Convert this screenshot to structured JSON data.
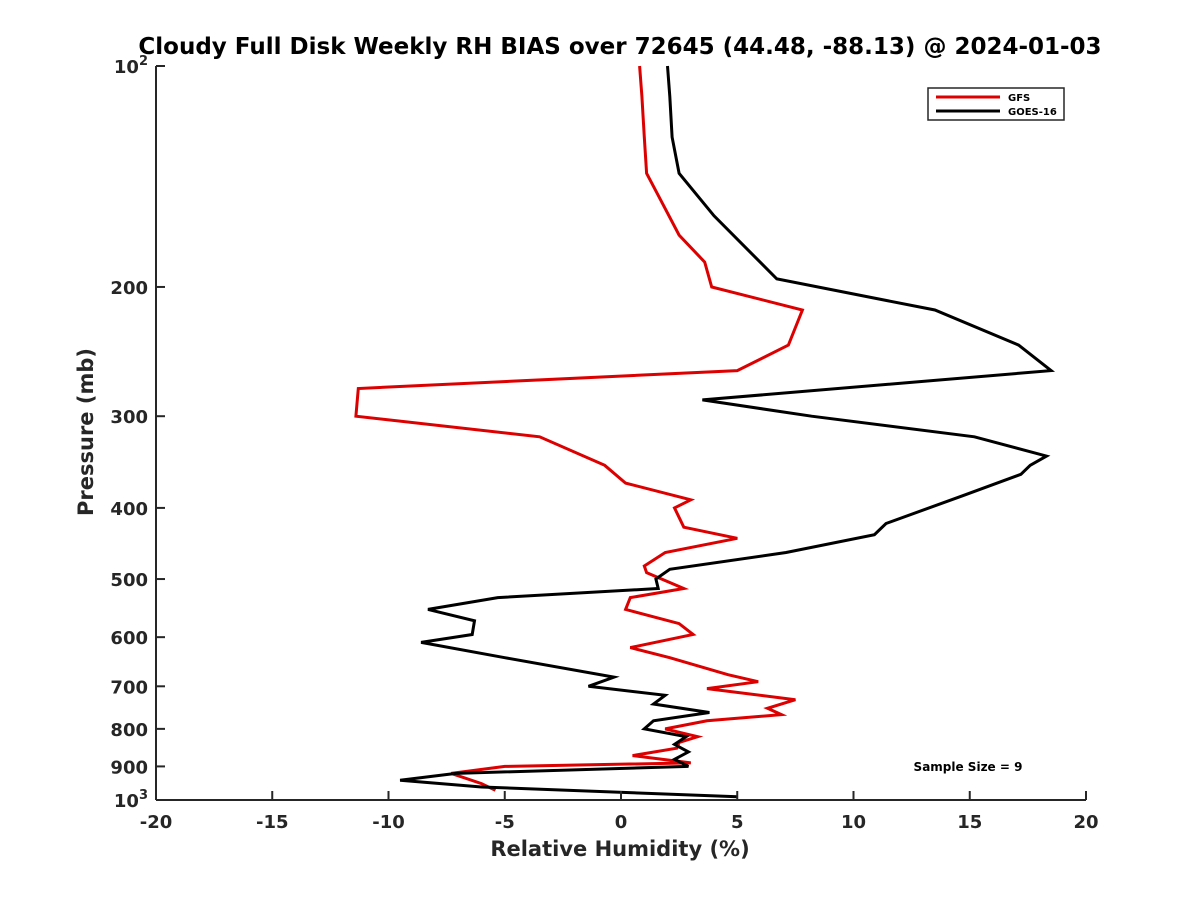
{
  "chart_data": {
    "type": "line",
    "title": "Cloudy Full Disk Weekly RH BIAS over 72645 (44.48, -88.13) @ 2024-01-03",
    "xlabel": "Relative Humidity (%)",
    "ylabel": "Pressure (mb)",
    "xlim": [
      -20,
      20
    ],
    "ylim": [
      100,
      1000
    ],
    "yscale": "log",
    "y_reversed": true,
    "grid": false,
    "legend_position": "top-right",
    "xticks": [
      -20,
      -15,
      -10,
      -5,
      0,
      5,
      10,
      15,
      20
    ],
    "xtick_labels": [
      "-20",
      "-15",
      "-10",
      "-5",
      "0",
      "5",
      "10",
      "15",
      "20"
    ],
    "yticks": [
      100,
      200,
      300,
      400,
      500,
      600,
      700,
      800,
      900,
      1000
    ],
    "ytick_labels": [
      {
        "base": "10",
        "exp": "2"
      },
      {
        "base": "200",
        "exp": ""
      },
      {
        "base": "300",
        "exp": ""
      },
      {
        "base": "400",
        "exp": ""
      },
      {
        "base": "500",
        "exp": ""
      },
      {
        "base": "600",
        "exp": ""
      },
      {
        "base": "700",
        "exp": ""
      },
      {
        "base": "800",
        "exp": ""
      },
      {
        "base": "900",
        "exp": ""
      },
      {
        "base": "10",
        "exp": "3"
      }
    ],
    "annotation": "Sample Size = 9",
    "series": [
      {
        "name": "GFS",
        "color": "#dd0000",
        "x": [
          0.8,
          0.9,
          1.0,
          1.1,
          1.6,
          2.5,
          3.6,
          3.9,
          7.8,
          7.2,
          5.0,
          -11.3,
          -11.4,
          -3.5,
          -0.7,
          0.2,
          3.0,
          2.3,
          2.7,
          5.0,
          1.9,
          1.0,
          1.1,
          2.7,
          0.4,
          0.2,
          2.5,
          3.1,
          0.4,
          2.1,
          4.6,
          5.9,
          3.7,
          7.5,
          6.3,
          6.9,
          3.7,
          1.9,
          3.3,
          2.5,
          2.4,
          0.5,
          3.0,
          -5.0,
          -7.3,
          -6.0,
          -5.4
        ],
        "y": [
          100,
          110,
          125,
          140,
          150,
          170,
          185,
          200,
          215,
          240,
          260,
          275,
          300,
          320,
          350,
          370,
          390,
          400,
          425,
          440,
          460,
          480,
          490,
          515,
          530,
          550,
          575,
          595,
          620,
          640,
          675,
          690,
          705,
          730,
          750,
          765,
          780,
          800,
          820,
          835,
          850,
          870,
          890,
          900,
          920,
          950,
          970
        ]
      },
      {
        "name": "GOES-16",
        "color": "#000000",
        "x": [
          2.0,
          2.1,
          2.2,
          2.5,
          4.0,
          6.7,
          13.5,
          17.1,
          18.5,
          3.5,
          8.2,
          15.2,
          18.3,
          17.6,
          17.2,
          14.7,
          11.4,
          10.9,
          7.1,
          2.1,
          1.5,
          1.6,
          -5.3,
          -8.3,
          -6.3,
          -6.4,
          -8.6,
          -5.0,
          -0.3,
          -1.4,
          1.9,
          1.4,
          3.8,
          1.4,
          1.0,
          2.8,
          2.3,
          2.9,
          2.3,
          2.9,
          -7.1,
          -9.5,
          -6.0,
          5.0
        ],
        "y": [
          100,
          110,
          125,
          140,
          160,
          195,
          215,
          240,
          260,
          285,
          300,
          320,
          340,
          350,
          360,
          385,
          420,
          435,
          460,
          485,
          500,
          515,
          530,
          550,
          570,
          595,
          610,
          640,
          680,
          700,
          720,
          740,
          760,
          780,
          800,
          820,
          840,
          860,
          880,
          900,
          920,
          940,
          960,
          990
        ]
      }
    ]
  }
}
